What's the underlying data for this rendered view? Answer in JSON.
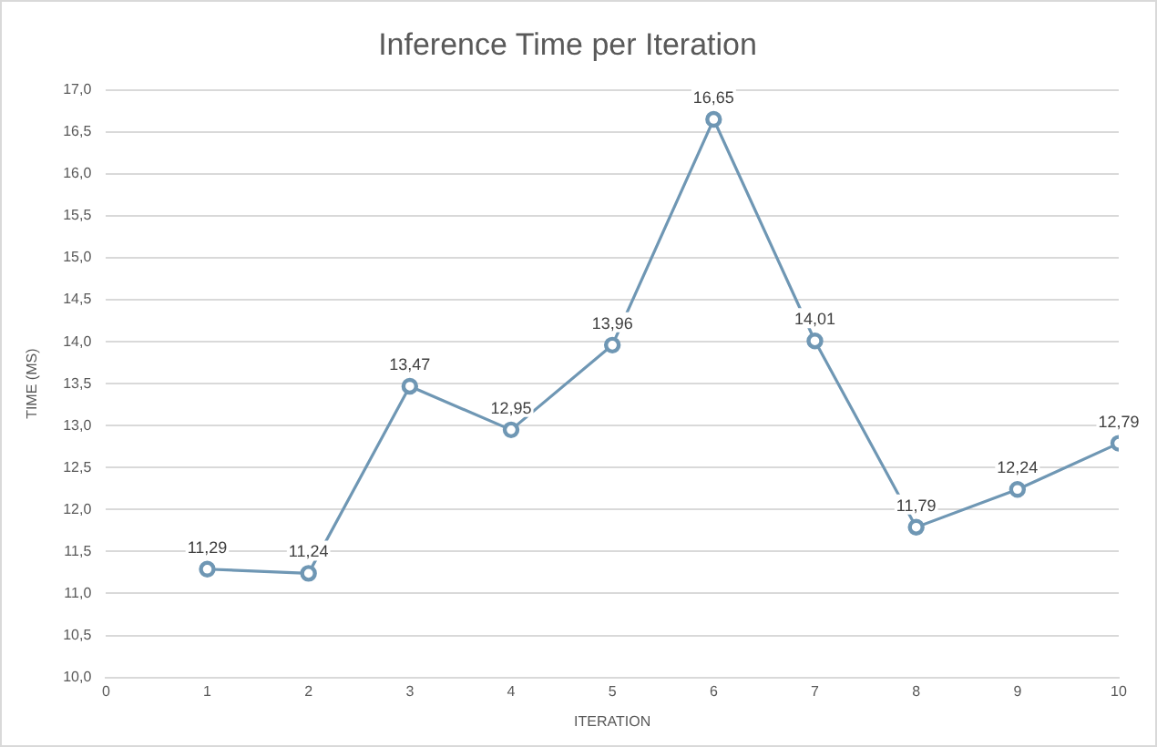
{
  "chart_data": {
    "type": "line",
    "title": "Inference Time per Iteration",
    "xlabel": "ITERATION",
    "ylabel": "TIME (MS)",
    "x": [
      1,
      2,
      3,
      4,
      5,
      6,
      7,
      8,
      9,
      10
    ],
    "series": [
      {
        "color": "#6f97b4",
        "values": [
          11.29,
          11.24,
          13.47,
          12.95,
          13.96,
          16.65,
          14.01,
          11.79,
          12.24,
          12.79
        ],
        "value_labels": [
          "11,29",
          "11,24",
          "13,47",
          "12,95",
          "13,96",
          "16,65",
          "14,01",
          "11,79",
          "12,24",
          "12,79"
        ]
      }
    ],
    "xlim": [
      0,
      10
    ],
    "xticks": [
      0,
      1,
      2,
      3,
      4,
      5,
      6,
      7,
      8,
      9,
      10
    ],
    "ylim": [
      10,
      17
    ],
    "yticks": [
      {
        "value": 10,
        "label": "10,0"
      },
      {
        "value": 10.5,
        "label": "10,5"
      },
      {
        "value": 11,
        "label": "11,0"
      },
      {
        "value": 11.5,
        "label": "11,5"
      },
      {
        "value": 12,
        "label": "12,0"
      },
      {
        "value": 12.5,
        "label": "12,5"
      },
      {
        "value": 13,
        "label": "13,0"
      },
      {
        "value": 13.5,
        "label": "13,5"
      },
      {
        "value": 14,
        "label": "14,0"
      },
      {
        "value": 14.5,
        "label": "14,5"
      },
      {
        "value": 15,
        "label": "15,0"
      },
      {
        "value": 15.5,
        "label": "15,5"
      },
      {
        "value": 16,
        "label": "16,0"
      },
      {
        "value": 16.5,
        "label": "16,5"
      },
      {
        "value": 17,
        "label": "17,0"
      }
    ],
    "grid": "y",
    "marker": "circle",
    "line_style": "solid",
    "legend": false
  }
}
